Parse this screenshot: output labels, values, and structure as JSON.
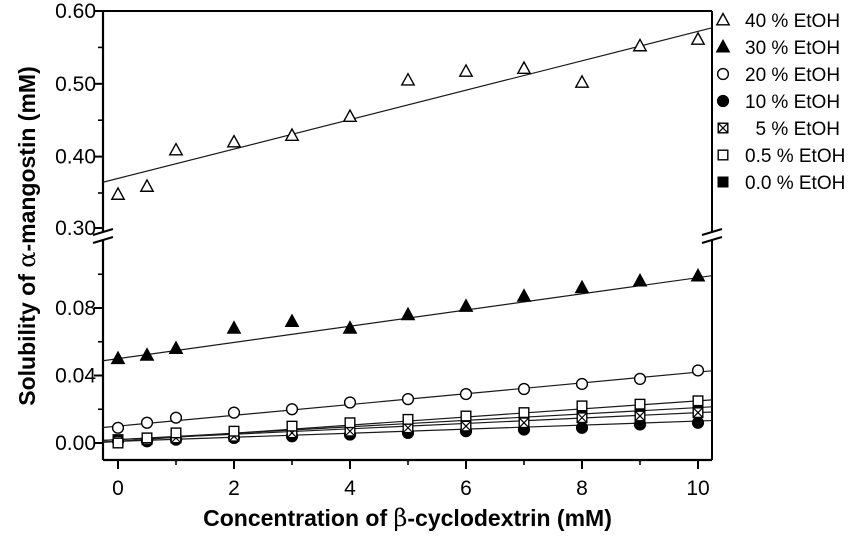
{
  "figure": {
    "background": "#ffffff",
    "foreground": "#000000",
    "line_color": "#1a1a1a"
  },
  "chart_data": {
    "type": "scatter",
    "title": "",
    "xlabel": "Concentration of β-cyclodextrin (mM)",
    "ylabel": "Solubility of α-mangostin (mM)",
    "xlabel_parts": {
      "pre": "Concentration of ",
      "greek": "β",
      "post": "-cyclodextrin (mM)"
    },
    "ylabel_parts": {
      "pre": "Solubility of ",
      "greek": "α",
      "post": "-mangostin (mM)"
    },
    "x_axis": {
      "range": [
        -0.26,
        10.24
      ],
      "major_ticks": [
        0,
        2,
        4,
        6,
        8,
        10
      ],
      "major_tick_labels": [
        "0",
        "2",
        "4",
        "6",
        "8",
        "10"
      ],
      "minor_ticks": [
        1,
        3,
        5,
        7,
        9
      ]
    },
    "y_axis": {
      "broken": true,
      "break_between": [
        0.117,
        0.3
      ],
      "upper_panel": {
        "range": [
          0.3,
          0.601
        ],
        "major_ticks": [
          0.3,
          0.4,
          0.5,
          0.6
        ],
        "major_tick_labels": [
          "0.30",
          "0.40",
          "0.50",
          "0.60"
        ],
        "minor_ticks": [
          0.35,
          0.45,
          0.55
        ]
      },
      "lower_panel": {
        "range": [
          -0.01,
          0.117
        ],
        "major_ticks": [
          0.0,
          0.04,
          0.08
        ],
        "major_tick_labels": [
          "0.00",
          "0.04",
          "0.08"
        ],
        "minor_ticks": [
          0.02,
          0.06,
          0.1
        ]
      }
    },
    "x": [
      0,
      0.5,
      1,
      2,
      3,
      4,
      5,
      6,
      7,
      8,
      9,
      10
    ],
    "series": [
      {
        "label": "40 % EtOH",
        "marker": "triangle-open",
        "panel": "upper",
        "y": [
          0.348,
          0.359,
          0.409,
          0.42,
          0.429,
          0.455,
          0.505,
          0.517,
          0.521,
          0.502,
          0.552,
          0.561
        ],
        "fit_line_y_at_x0_x10": [
          0.37,
          0.572
        ]
      },
      {
        "label": "30 % EtOH",
        "marker": "triangle-filled",
        "panel": "lower",
        "y": [
          0.05,
          0.052,
          0.056,
          0.068,
          0.072,
          0.068,
          0.076,
          0.081,
          0.087,
          0.092,
          0.096,
          0.099
        ],
        "fit_line_y_at_x0_x10": [
          0.05,
          0.098
        ]
      },
      {
        "label": "20 % EtOH",
        "marker": "circle-open",
        "panel": "lower",
        "y": [
          0.009,
          0.012,
          0.015,
          0.018,
          0.02,
          0.024,
          0.026,
          0.029,
          0.032,
          0.035,
          0.038,
          0.043
        ],
        "fit_line_y_at_x0_x10": [
          0.01,
          0.042
        ]
      },
      {
        "label": "10 % EtOH",
        "marker": "circle-filled",
        "panel": "lower",
        "y": [
          0.001,
          0.001,
          0.002,
          0.003,
          0.004,
          0.005,
          0.006,
          0.007,
          0.008,
          0.009,
          0.011,
          0.012
        ],
        "fit_line_y_at_x0_x10": [
          0.001,
          0.013
        ]
      },
      {
        "label": "  5 % EtOH",
        "marker": "square-x",
        "panel": "lower",
        "y": [
          0.001,
          0.002,
          0.003,
          0.004,
          0.006,
          0.007,
          0.009,
          0.01,
          0.012,
          0.015,
          0.016,
          0.018
        ],
        "fit_line_y_at_x0_x10": [
          0.002,
          0.018
        ]
      },
      {
        "label": "0.5 % EtOH",
        "marker": "square-open",
        "panel": "lower",
        "y": [
          0.0,
          0.003,
          0.006,
          0.007,
          0.01,
          0.012,
          0.014,
          0.016,
          0.018,
          0.022,
          0.023,
          0.025
        ],
        "fit_line_y_at_x0_x10": [
          0.001,
          0.025
        ]
      },
      {
        "label": "0.0 % EtOH",
        "marker": "square-filled",
        "panel": "lower",
        "y": [
          0.002,
          0.003,
          0.004,
          0.006,
          0.008,
          0.009,
          0.011,
          0.013,
          0.015,
          0.017,
          0.019,
          0.021
        ],
        "fit_line_y_at_x0_x10": [
          0.002,
          0.021
        ]
      }
    ],
    "legend": {
      "position": "outside-top-right"
    }
  }
}
